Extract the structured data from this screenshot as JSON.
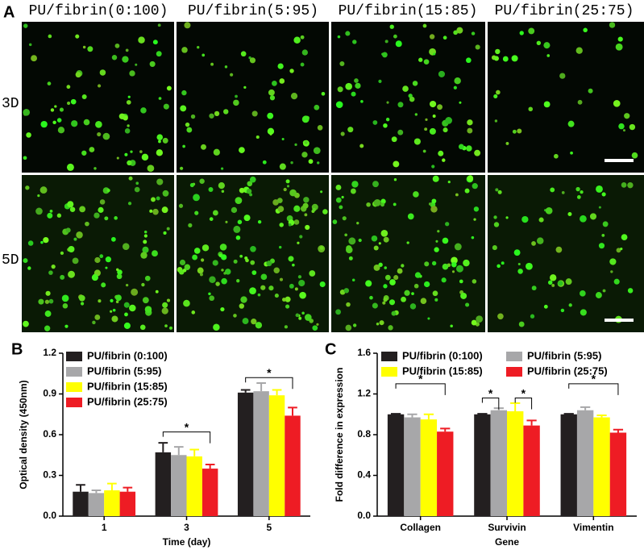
{
  "panel_a": {
    "label": "A",
    "columns": [
      "PU/fibrin(0:100)",
      "PU/fibrin(5:95)",
      "PU/fibrin(15:85)",
      "PU/fibrin(25:75)"
    ],
    "rows": [
      "3D",
      "5D"
    ]
  },
  "chart_data": [
    {
      "type": "bar",
      "panel": "B",
      "x_label": "Time (day)",
      "y_label": "Optical density (450nm)",
      "categories": [
        "1",
        "3",
        "5"
      ],
      "ylim": [
        0,
        1.2
      ],
      "yticks": [
        {
          "value": 0,
          "label": "0.0"
        },
        0.3,
        0.6,
        0.9,
        1.2
      ],
      "series": [
        {
          "name": "PU/fibrin (0:100)",
          "color": "#231f20",
          "values": [
            0.18,
            0.47,
            0.91
          ],
          "errors": [
            0.05,
            0.07,
            0.02
          ]
        },
        {
          "name": "PU/fibrin (5:95)",
          "color": "#a7a7a9",
          "values": [
            0.17,
            0.45,
            0.92
          ],
          "errors": [
            0.02,
            0.06,
            0.06
          ]
        },
        {
          "name": "PU/fibrin (15:85)",
          "color": "#ffff00",
          "values": [
            0.19,
            0.44,
            0.89
          ],
          "errors": [
            0.05,
            0.05,
            0.04
          ]
        },
        {
          "name": "PU/fibrin (25:75)",
          "color": "#ee1c24",
          "values": [
            0.18,
            0.35,
            0.74
          ],
          "errors": [
            0.03,
            0.03,
            0.06
          ]
        }
      ],
      "annotations": [
        "*",
        "*"
      ]
    },
    {
      "type": "bar",
      "panel": "C",
      "x_label": "Gene",
      "y_label": "Fold difference in expression",
      "categories": [
        "Collagen",
        "Survivin",
        "Vimentin"
      ],
      "ylim": [
        0,
        1.6
      ],
      "yticks": [
        {
          "value": 0,
          "label": "0.0"
        },
        0.4,
        0.8,
        1.2,
        1.6
      ],
      "series": [
        {
          "name": "PU/fibrin (0:100)",
          "color": "#231f20",
          "values": [
            1.0,
            1.0,
            1.0
          ],
          "errors": [
            0.005,
            0.005,
            0.005
          ]
        },
        {
          "name": "PU/fibrin (5:95)",
          "color": "#a7a7a9",
          "values": [
            0.97,
            1.04,
            1.04
          ],
          "errors": [
            0.03,
            0.02,
            0.03
          ]
        },
        {
          "name": "PU/fibrin (15:85)",
          "color": "#ffff00",
          "values": [
            0.95,
            1.03,
            0.97
          ],
          "errors": [
            0.05,
            0.08,
            0.02
          ]
        },
        {
          "name": "PU/fibrin (25:75)",
          "color": "#ee1c24",
          "values": [
            0.83,
            0.89,
            0.82
          ],
          "errors": [
            0.03,
            0.05,
            0.03
          ]
        }
      ],
      "annotations": [
        "*",
        "*",
        "*",
        "*"
      ]
    }
  ]
}
